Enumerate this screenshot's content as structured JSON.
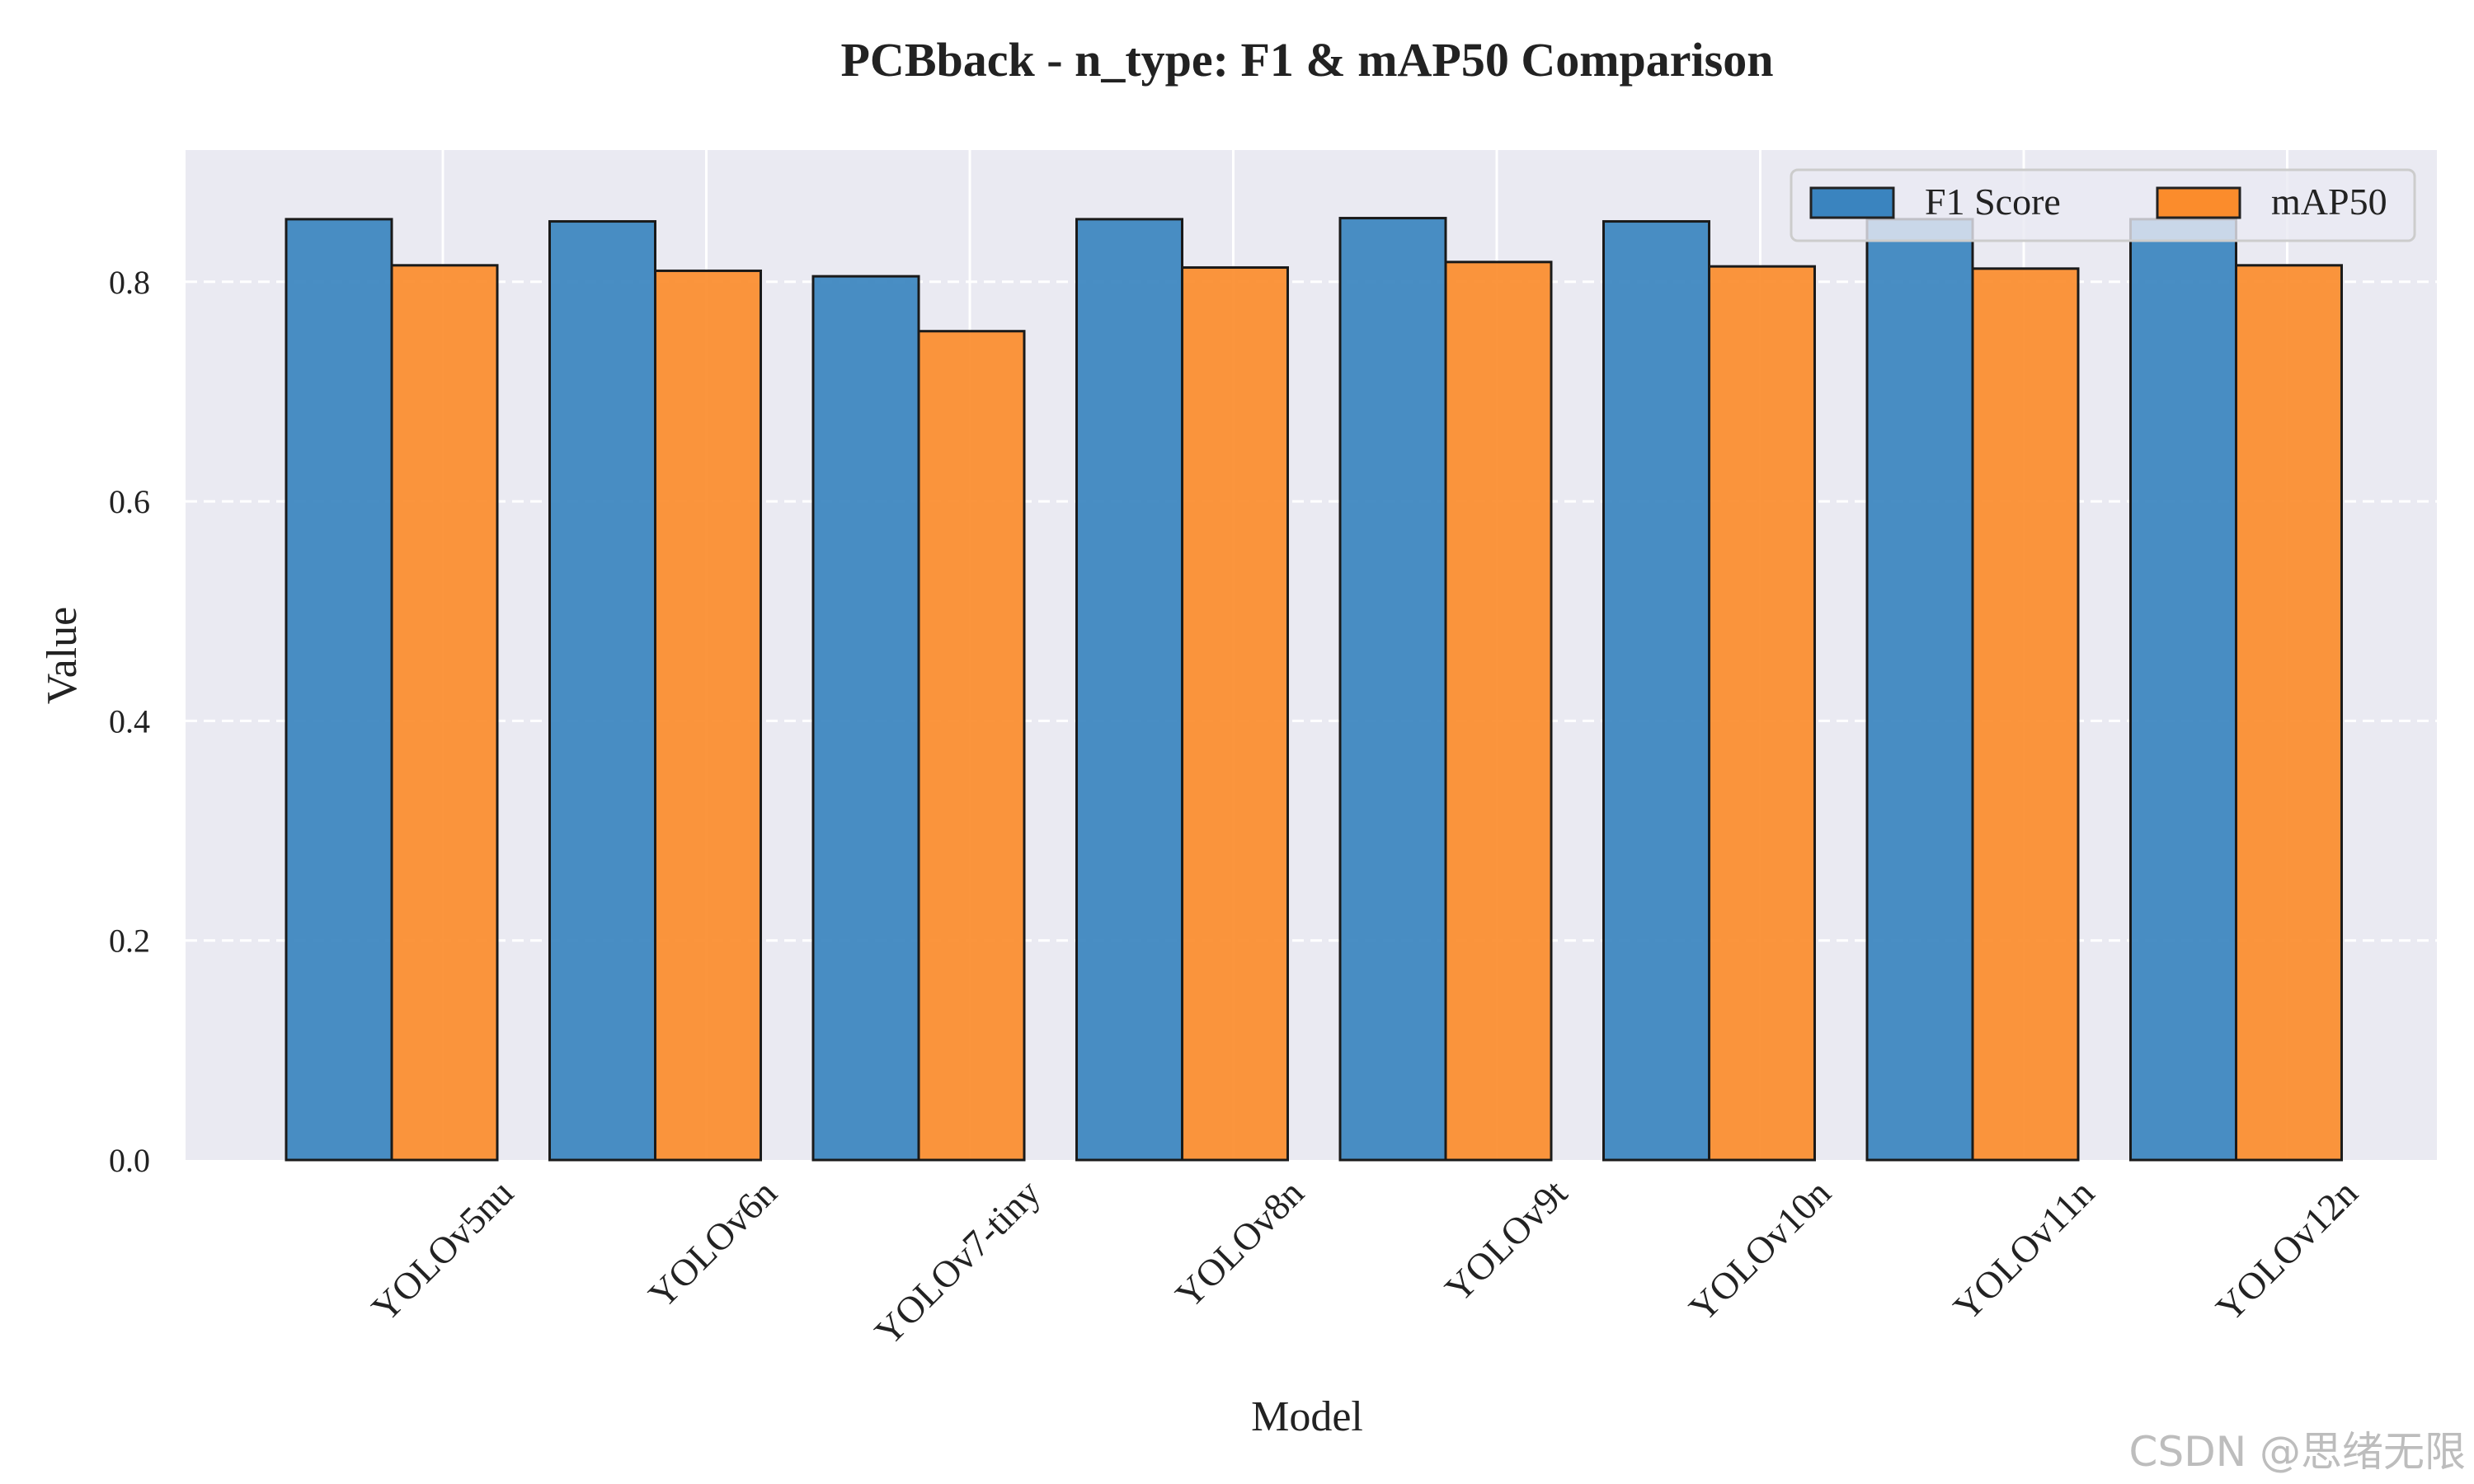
{
  "chart_data": {
    "type": "bar",
    "title": "PCBback - n_type: F1 & mAP50 Comparison",
    "xlabel": "Model",
    "ylabel": "Value",
    "categories": [
      "YOLOv5nu",
      "YOLOv6n",
      "YOLOv7-tiny",
      "YOLOv8n",
      "YOLOv9t",
      "YOLOv10n",
      "YOLOv11n",
      "YOLOv12n"
    ],
    "series": [
      {
        "name": "F1 Score",
        "color": "#3a84bf",
        "values": [
          0.857,
          0.855,
          0.805,
          0.857,
          0.858,
          0.855,
          0.857,
          0.857
        ]
      },
      {
        "name": "mAP50",
        "color": "#fb8c2c",
        "values": [
          0.815,
          0.81,
          0.755,
          0.813,
          0.818,
          0.814,
          0.812,
          0.815
        ]
      }
    ],
    "ylim": [
      0,
      0.92
    ],
    "yticks": [
      0.0,
      0.2,
      0.4,
      0.6,
      0.8
    ],
    "ytick_labels": [
      "0.0",
      "0.2",
      "0.4",
      "0.6",
      "0.8"
    ],
    "grid": true,
    "legend_position": "top-right",
    "background_color": "#eaeaf2"
  },
  "watermark": "CSDN @思绪无限"
}
